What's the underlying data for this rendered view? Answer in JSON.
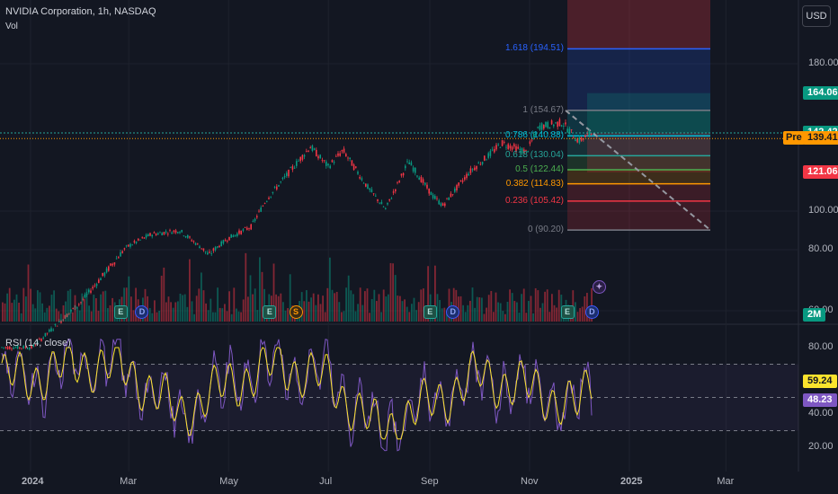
{
  "header": {
    "symbol_title": "NVIDIA Corporation, 1h, NASDAQ",
    "vol_label": "Vol",
    "rsi_title": "RSI (14, close)",
    "currency_button": "USD"
  },
  "price_axis": {
    "ticks": [
      {
        "value": 180,
        "label": "180.00"
      },
      {
        "value": 100,
        "label": "100.00"
      },
      {
        "value": 80,
        "label": "80.00"
      },
      {
        "value": 60,
        "label": "60.00"
      }
    ],
    "tags": [
      {
        "label": "164.06",
        "value": 164.06,
        "color": "#089981",
        "text_color": "#ffffff"
      },
      {
        "label": "142.56",
        "value": 142.56,
        "color": "#5d606b",
        "text_color": "#ffffff"
      },
      {
        "label": "142.42",
        "value": 142.42,
        "color": "#089981",
        "text_color": "#ffffff"
      },
      {
        "label": "139.41",
        "value": 139.41,
        "color": "#ff9800",
        "text_color": "#131722"
      },
      {
        "label": "121.06",
        "value": 121.06,
        "color": "#f23645",
        "text_color": "#ffffff"
      }
    ],
    "pre_label": "Pre",
    "volume_tag": "2M"
  },
  "rsi_axis": {
    "ticks": [
      {
        "value": 80,
        "label": "80.00"
      },
      {
        "value": 40,
        "label": "40.00"
      },
      {
        "value": 20,
        "label": "20.00"
      }
    ],
    "tags": [
      {
        "label": "59.24",
        "value": 59.24,
        "color": "#fbe32d",
        "text_color": "#131722"
      },
      {
        "label": "48.23",
        "value": 48.23,
        "color": "#7e57c2",
        "text_color": "#ffffff"
      }
    ]
  },
  "time_axis": [
    "2024",
    "Mar",
    "May",
    "Jul",
    "Sep",
    "Nov",
    "2025",
    "Mar"
  ],
  "fib_levels": [
    {
      "ratio": "1.618",
      "price": 194.51,
      "label": "1.618 (194.51)",
      "color": "#2962ff"
    },
    {
      "ratio": "1",
      "price": 154.67,
      "label": "1 (154.67)",
      "color": "#787b86"
    },
    {
      "ratio": "0.786",
      "price": 140.88,
      "label": "0.786 (140.88)",
      "color": "#00bcd4"
    },
    {
      "ratio": "0.618",
      "price": 130.04,
      "label": "0.618 (130.04)",
      "color": "#26a69a"
    },
    {
      "ratio": "0.5",
      "price": 122.44,
      "label": "0.5 (122.44)",
      "color": "#4caf50"
    },
    {
      "ratio": "0.382",
      "price": 114.83,
      "label": "0.382 (114.83)",
      "color": "#ff9800"
    },
    {
      "ratio": "0.236",
      "price": 105.42,
      "label": "0.236 (105.42)",
      "color": "#f23645"
    },
    {
      "ratio": "0",
      "price": 90.2,
      "label": "0 (90.20)",
      "color": "#787b86"
    }
  ],
  "events": [
    {
      "type": "E",
      "label": "E",
      "date": "2024-02-21"
    },
    {
      "type": "D",
      "label": "D",
      "date": "2024-03-05"
    },
    {
      "type": "E",
      "label": "E",
      "date": "2024-05-22"
    },
    {
      "type": "S",
      "label": "S",
      "date": "2024-06-07"
    },
    {
      "type": "E",
      "label": "E",
      "date": "2024-08-28"
    },
    {
      "type": "D",
      "label": "D",
      "date": "2024-09-11"
    },
    {
      "type": "E",
      "label": "E",
      "date": "2024-11-20"
    },
    {
      "type": "D",
      "label": "D",
      "date": "2024-12-05"
    },
    {
      "type": "star",
      "label": "✦",
      "date": "2024-12-05"
    }
  ],
  "chart_data": {
    "type": "candlestick",
    "price_series": {
      "name": "NVDA 1h",
      "x": [
        "2024-01-02",
        "2024-01-16",
        "2024-02-01",
        "2024-02-15",
        "2024-03-01",
        "2024-03-15",
        "2024-04-01",
        "2024-04-19",
        "2024-05-01",
        "2024-05-15",
        "2024-05-24",
        "2024-06-07",
        "2024-06-20",
        "2024-07-01",
        "2024-07-10",
        "2024-07-25",
        "2024-08-05",
        "2024-08-19",
        "2024-09-03",
        "2024-09-09",
        "2024-09-25",
        "2024-10-08",
        "2024-10-15",
        "2024-10-30",
        "2024-11-07",
        "2024-11-21",
        "2024-12-01",
        "2024-12-09"
      ],
      "close": [
        48,
        55,
        63,
        72,
        82,
        88,
        90,
        78,
        86,
        92,
        106,
        121,
        135,
        124,
        133,
        113,
        101,
        127,
        108,
        103,
        121,
        131,
        137,
        132,
        146,
        148,
        138,
        142.56
      ]
    },
    "rsi_series": {
      "name": "RSI (14, close)",
      "x": [
        "2024-01-02",
        "2024-02-01",
        "2024-03-01",
        "2024-04-01",
        "2024-05-01",
        "2024-06-01",
        "2024-07-01",
        "2024-08-01",
        "2024-09-01",
        "2024-10-01",
        "2024-11-01",
        "2024-12-01",
        "2024-12-09"
      ],
      "values": [
        62,
        71,
        66,
        40,
        58,
        70,
        60,
        30,
        46,
        63,
        55,
        44,
        59.24
      ],
      "overbought": 70,
      "oversold": 30,
      "ma_last": 48.23
    },
    "ylim_price": [
      40,
      200
    ],
    "ylim_rsi": [
      10,
      90
    ]
  }
}
